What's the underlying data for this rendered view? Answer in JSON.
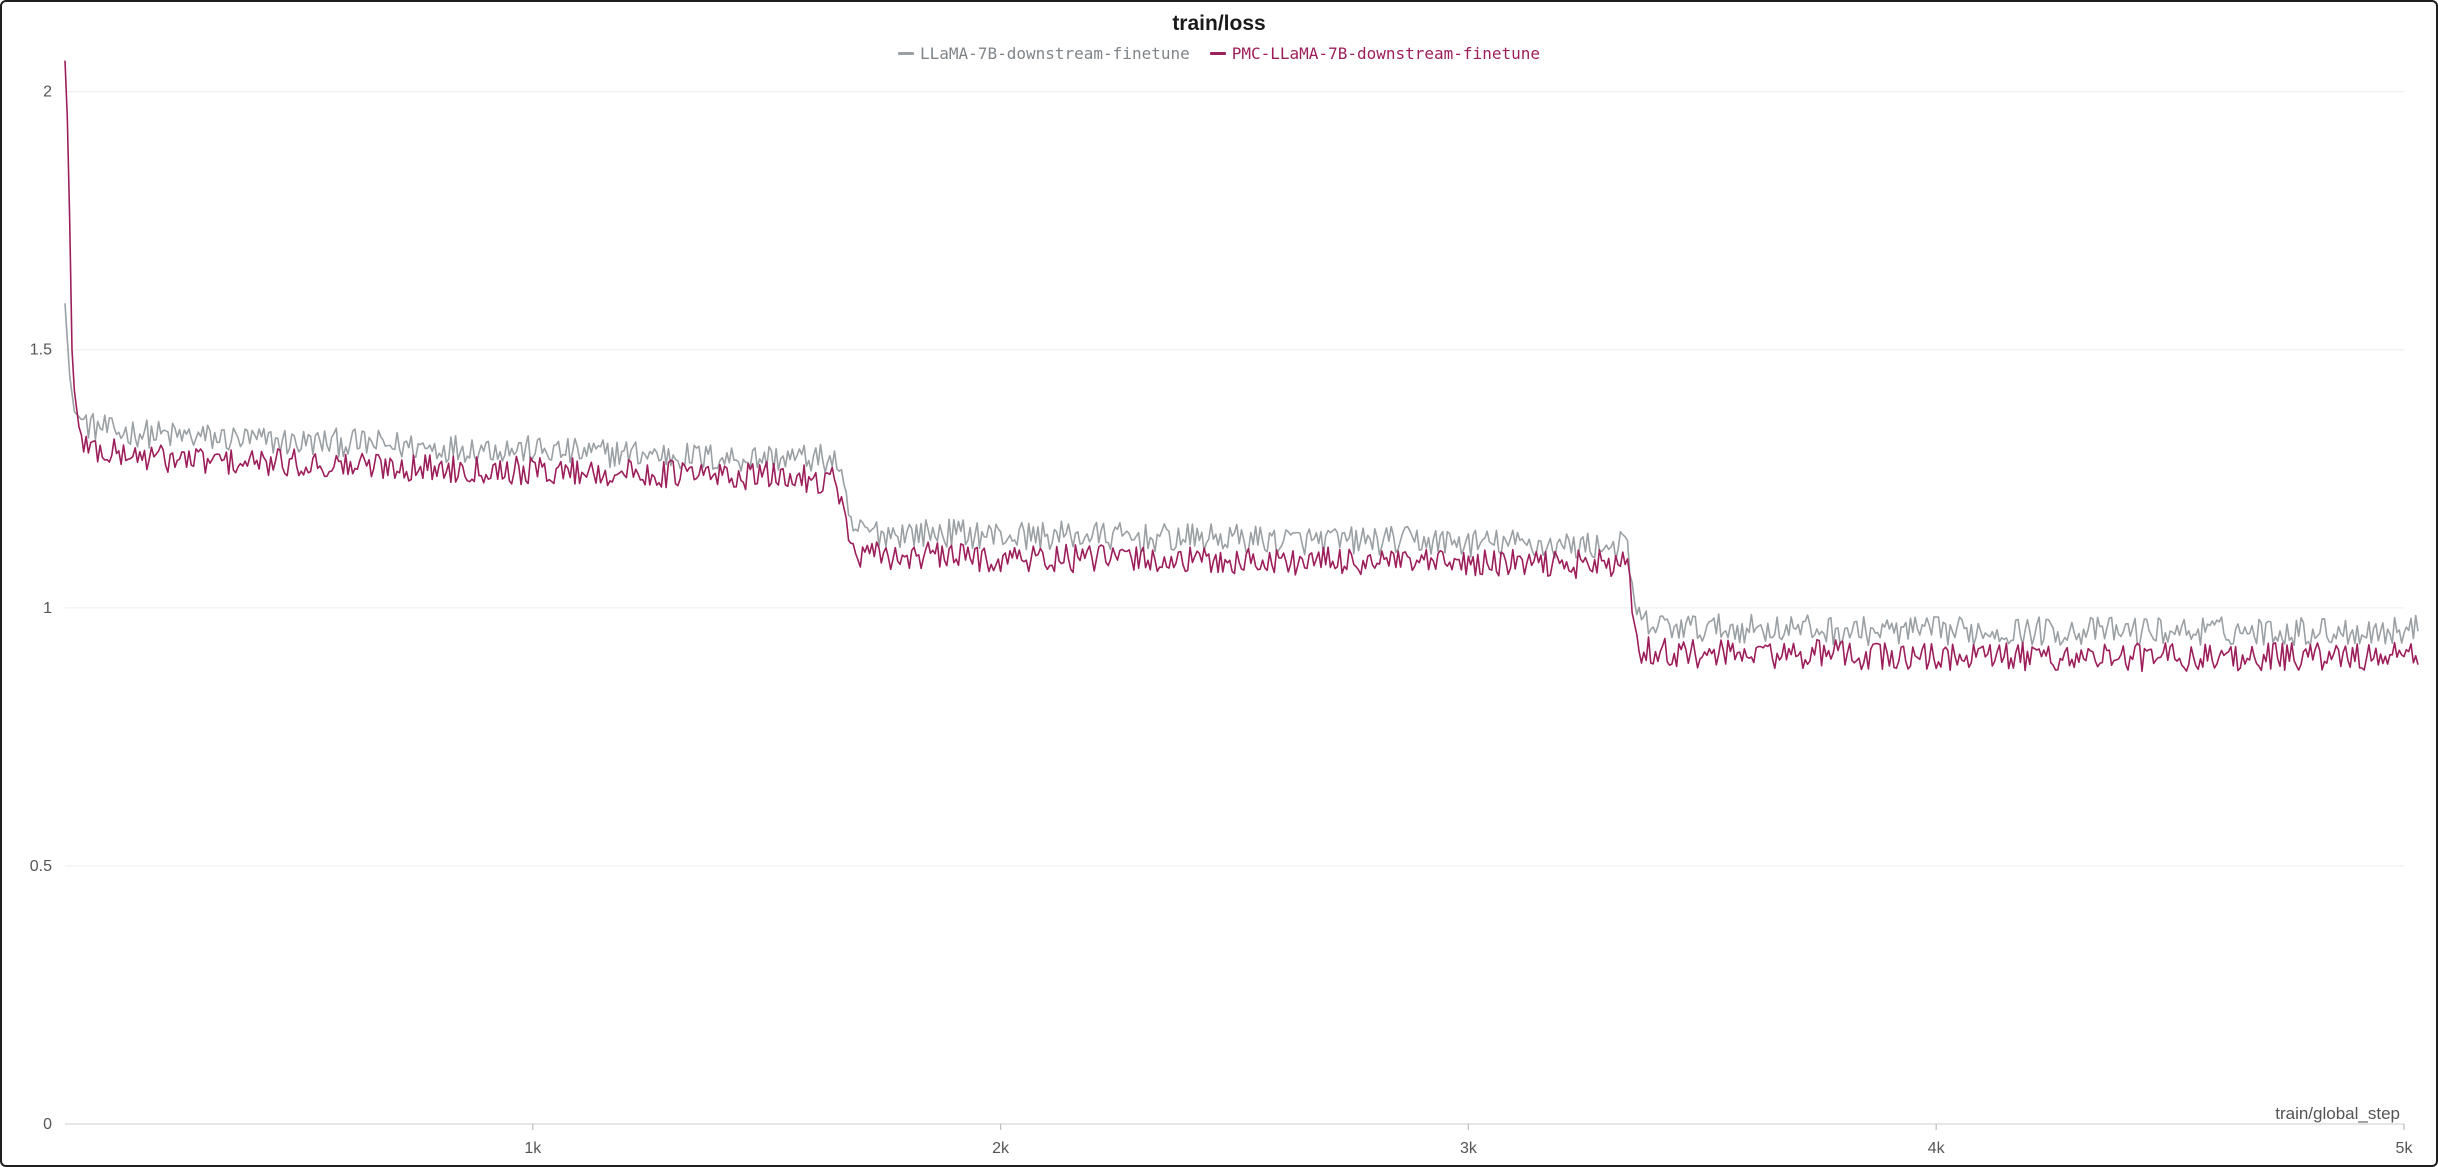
{
  "chart_data": {
    "type": "line",
    "title": "train/loss",
    "xlabel": "train/global_step",
    "ylabel": "",
    "xlim": [
      0,
      5000
    ],
    "ylim": [
      0,
      2.1
    ],
    "grid": true,
    "legend_position": "top-center",
    "x_ticks": [
      {
        "value": 1000,
        "label": "1k"
      },
      {
        "value": 2000,
        "label": "2k"
      },
      {
        "value": 3000,
        "label": "3k"
      },
      {
        "value": 4000,
        "label": "4k"
      },
      {
        "value": 5000,
        "label": "5k"
      }
    ],
    "y_ticks": [
      {
        "value": 0,
        "label": "0"
      },
      {
        "value": 0.5,
        "label": "0.5"
      },
      {
        "value": 1,
        "label": "1"
      },
      {
        "value": 1.5,
        "label": "1.5"
      },
      {
        "value": 2,
        "label": "2"
      }
    ],
    "series": [
      {
        "name": "LLaMA-7B-downstream-finetune",
        "color": "#9aa0a4",
        "x": [
          0,
          10,
          20,
          40,
          60,
          80,
          100,
          150,
          200,
          300,
          400,
          500,
          600,
          700,
          800,
          900,
          1000,
          1100,
          1200,
          1300,
          1400,
          1500,
          1600,
          1650,
          1670,
          1680,
          1700,
          1750,
          1800,
          1900,
          2000,
          2100,
          2200,
          2300,
          2400,
          2500,
          2600,
          2700,
          2800,
          2900,
          3000,
          3100,
          3200,
          3300,
          3340,
          3355,
          3370,
          3400,
          3500,
          3600,
          3700,
          3800,
          3900,
          4000,
          4100,
          4200,
          4300,
          4400,
          4500,
          4600,
          4700,
          4800,
          4900,
          5000,
          5030
        ],
        "y": [
          1.59,
          1.45,
          1.38,
          1.36,
          1.35,
          1.35,
          1.34,
          1.34,
          1.335,
          1.33,
          1.325,
          1.32,
          1.32,
          1.315,
          1.31,
          1.31,
          1.305,
          1.3,
          1.3,
          1.295,
          1.29,
          1.29,
          1.29,
          1.285,
          1.2,
          1.155,
          1.15,
          1.145,
          1.145,
          1.145,
          1.14,
          1.14,
          1.14,
          1.135,
          1.135,
          1.135,
          1.13,
          1.13,
          1.13,
          1.13,
          1.125,
          1.125,
          1.12,
          1.12,
          1.12,
          1.0,
          0.97,
          0.965,
          0.96,
          0.96,
          0.96,
          0.955,
          0.955,
          0.955,
          0.955,
          0.955,
          0.955,
          0.955,
          0.955,
          0.955,
          0.955,
          0.955,
          0.955,
          0.955,
          0.96
        ]
      },
      {
        "name": "PMC-LLaMA-7B-downstream-finetune",
        "color": "#9c1f5b",
        "x": [
          0,
          5,
          10,
          15,
          20,
          30,
          40,
          60,
          80,
          100,
          150,
          200,
          300,
          400,
          500,
          600,
          700,
          800,
          900,
          1000,
          1100,
          1200,
          1300,
          1400,
          1500,
          1600,
          1650,
          1670,
          1680,
          1700,
          1750,
          1800,
          1900,
          2000,
          2100,
          2200,
          2300,
          2400,
          2500,
          2600,
          2700,
          2800,
          2900,
          3000,
          3100,
          3200,
          3300,
          3340,
          3355,
          3370,
          3400,
          3500,
          3600,
          3700,
          3800,
          3900,
          4000,
          4100,
          4200,
          4300,
          4400,
          4500,
          4600,
          4700,
          4800,
          4900,
          5000,
          5030
        ],
        "y": [
          2.06,
          1.95,
          1.75,
          1.5,
          1.42,
          1.35,
          1.32,
          1.31,
          1.3,
          1.3,
          1.295,
          1.29,
          1.285,
          1.28,
          1.28,
          1.275,
          1.275,
          1.27,
          1.27,
          1.265,
          1.265,
          1.26,
          1.26,
          1.255,
          1.255,
          1.25,
          1.25,
          1.16,
          1.11,
          1.1,
          1.1,
          1.1,
          1.1,
          1.095,
          1.095,
          1.095,
          1.095,
          1.09,
          1.09,
          1.09,
          1.09,
          1.09,
          1.085,
          1.085,
          1.085,
          1.085,
          1.085,
          1.08,
          0.96,
          0.92,
          0.915,
          0.91,
          0.91,
          0.91,
          0.91,
          0.905,
          0.905,
          0.905,
          0.905,
          0.905,
          0.905,
          0.905,
          0.905,
          0.905,
          0.905,
          0.905,
          0.905,
          0.91
        ]
      }
    ]
  }
}
